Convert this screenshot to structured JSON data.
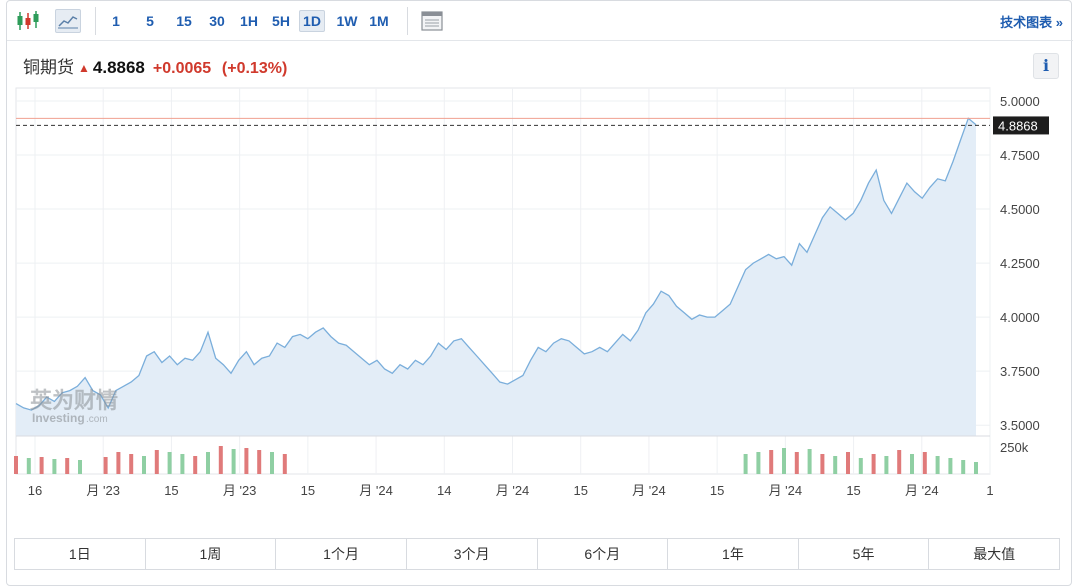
{
  "toolbar": {
    "intervals": [
      "1",
      "5",
      "15",
      "30",
      "1H",
      "5H",
      "1D",
      "1W",
      "1M"
    ],
    "active_interval": "1D",
    "tech_chart_label": "技术图表 »"
  },
  "quote": {
    "name": "铜期货",
    "price": "4.8868",
    "change": "+0.0065",
    "change_pct": "(+0.13%)"
  },
  "info_button": "i",
  "watermark": {
    "line1": "英为财情",
    "line2": "Investing",
    "line2_suffix": ".com"
  },
  "range_buttons": [
    "1日",
    "1周",
    "1个月",
    "3个月",
    "6个月",
    "1年",
    "5年",
    "最大值"
  ],
  "colors": {
    "line": "#7aaedb",
    "area": "#e3edf7",
    "up": "#d0392c",
    "volume_up": "#8fcfa3",
    "volume_down": "#e07a7a"
  },
  "chart_data": {
    "type": "area",
    "x_tick_labels": [
      "16",
      "月 '23",
      "15",
      "月 '23",
      "15",
      "月 '24",
      "14",
      "月 '24",
      "15",
      "月 '24",
      "15",
      "月 '24",
      "15",
      "月 '24",
      "1"
    ],
    "y_tick_labels": [
      "5.0000",
      "4.7500",
      "4.5000",
      "4.2500",
      "4.0000",
      "3.7500",
      "3.5000"
    ],
    "ylim": [
      3.45,
      5.06
    ],
    "last_price_label": "4.8868",
    "last_price": 4.8868,
    "volume_axis_label": "250k",
    "price_series": [
      3.6,
      3.58,
      3.57,
      3.59,
      3.63,
      3.61,
      3.65,
      3.66,
      3.68,
      3.72,
      3.66,
      3.64,
      3.58,
      3.66,
      3.68,
      3.7,
      3.73,
      3.82,
      3.84,
      3.79,
      3.82,
      3.78,
      3.81,
      3.8,
      3.84,
      3.93,
      3.81,
      3.78,
      3.74,
      3.8,
      3.84,
      3.78,
      3.81,
      3.82,
      3.88,
      3.86,
      3.91,
      3.92,
      3.9,
      3.93,
      3.95,
      3.91,
      3.88,
      3.87,
      3.84,
      3.81,
      3.78,
      3.8,
      3.76,
      3.74,
      3.78,
      3.76,
      3.8,
      3.78,
      3.82,
      3.88,
      3.85,
      3.89,
      3.9,
      3.86,
      3.82,
      3.78,
      3.74,
      3.7,
      3.69,
      3.71,
      3.73,
      3.8,
      3.86,
      3.84,
      3.88,
      3.9,
      3.89,
      3.86,
      3.83,
      3.84,
      3.86,
      3.84,
      3.88,
      3.92,
      3.89,
      3.94,
      4.02,
      4.06,
      4.12,
      4.1,
      4.05,
      4.02,
      3.99,
      4.01,
      4.0,
      4.0,
      4.03,
      4.06,
      4.14,
      4.22,
      4.25,
      4.27,
      4.29,
      4.27,
      4.28,
      4.24,
      4.34,
      4.3,
      4.38,
      4.46,
      4.51,
      4.48,
      4.45,
      4.48,
      4.54,
      4.62,
      4.68,
      4.54,
      4.48,
      4.55,
      4.62,
      4.58,
      4.55,
      4.6,
      4.64,
      4.63,
      4.72,
      4.82,
      4.92,
      4.89
    ],
    "volume": [
      [
        1,
        0.18
      ],
      [
        0,
        0.16
      ],
      [
        1,
        0.17
      ],
      [
        0,
        0.15
      ],
      [
        1,
        0.16
      ],
      [
        0,
        0.14
      ],
      [
        0,
        0.0
      ],
      [
        1,
        0.17
      ],
      [
        1,
        0.22
      ],
      [
        1,
        0.2
      ],
      [
        0,
        0.18
      ],
      [
        1,
        0.24
      ],
      [
        0,
        0.22
      ],
      [
        0,
        0.2
      ],
      [
        1,
        0.18
      ],
      [
        0,
        0.22
      ],
      [
        1,
        0.28
      ],
      [
        0,
        0.25
      ],
      [
        1,
        0.26
      ],
      [
        1,
        0.24
      ],
      [
        0,
        0.22
      ],
      [
        1,
        0.2
      ],
      [
        0,
        0.0
      ],
      [
        0,
        0.0
      ],
      [
        0,
        0.0
      ],
      [
        0,
        0.0
      ],
      [
        0,
        0.0
      ],
      [
        0,
        0.0
      ],
      [
        0,
        0.0
      ],
      [
        0,
        0.0
      ],
      [
        0,
        0.0
      ],
      [
        0,
        0.0
      ],
      [
        0,
        0.0
      ],
      [
        0,
        0.0
      ],
      [
        0,
        0.0
      ],
      [
        0,
        0.0
      ],
      [
        0,
        0.0
      ],
      [
        0,
        0.0
      ],
      [
        0,
        0.0
      ],
      [
        0,
        0.0
      ],
      [
        0,
        0.0
      ],
      [
        0,
        0.0
      ],
      [
        0,
        0.0
      ],
      [
        0,
        0.0
      ],
      [
        0,
        0.0
      ],
      [
        0,
        0.0
      ],
      [
        0,
        0.0
      ],
      [
        0,
        0.0
      ],
      [
        0,
        0.0
      ],
      [
        0,
        0.0
      ],
      [
        0,
        0.0
      ],
      [
        0,
        0.0
      ],
      [
        0,
        0.0
      ],
      [
        0,
        0.0
      ],
      [
        0,
        0.0
      ],
      [
        0,
        0.0
      ],
      [
        0,
        0.0
      ],
      [
        0,
        0.2
      ],
      [
        0,
        0.22
      ],
      [
        1,
        0.24
      ],
      [
        0,
        0.26
      ],
      [
        1,
        0.22
      ],
      [
        0,
        0.25
      ],
      [
        1,
        0.2
      ],
      [
        0,
        0.18
      ],
      [
        1,
        0.22
      ],
      [
        0,
        0.16
      ],
      [
        1,
        0.2
      ],
      [
        0,
        0.18
      ],
      [
        1,
        0.24
      ],
      [
        0,
        0.2
      ],
      [
        1,
        0.22
      ],
      [
        0,
        0.18
      ],
      [
        0,
        0.16
      ],
      [
        0,
        0.14
      ],
      [
        0,
        0.12
      ]
    ]
  }
}
